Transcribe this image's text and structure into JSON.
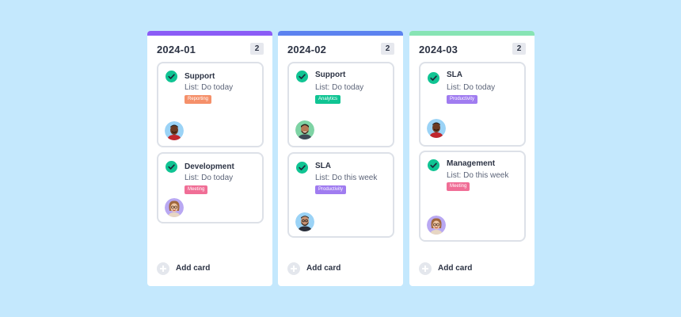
{
  "columns": [
    {
      "title": "2024-01",
      "count": "2",
      "accent": "#8b5cf6",
      "add_label": "Add card",
      "cards": [
        {
          "title": "Support",
          "list": "List: Do today",
          "tag": "Reporting",
          "tag_color": "#f5906a",
          "avatar": "avatar-man-dark-red-shirt"
        },
        {
          "title": "Development",
          "list": "List: Do today",
          "tag": "Meeting",
          "tag_color": "#f06e96",
          "avatar": "avatar-woman-glasses"
        }
      ]
    },
    {
      "title": "2024-02",
      "count": "2",
      "accent": "#5c82f0",
      "add_label": "Add card",
      "cards": [
        {
          "title": "Support",
          "list": "List: Do today",
          "tag": "Analytics",
          "tag_color": "#10c493",
          "avatar": "avatar-man-beard-green"
        },
        {
          "title": "SLA",
          "list": "List: Do this week",
          "tag": "Productivity",
          "tag_color": "#a07cf0",
          "avatar": "avatar-man-beard-blue"
        }
      ]
    },
    {
      "title": "2024-03",
      "count": "2",
      "accent": "#87e4b4",
      "add_label": "Add card",
      "cards": [
        {
          "title": "SLA",
          "list": "List: Do today",
          "tag": "Productivity",
          "tag_color": "#a07cf0",
          "avatar": "avatar-man-dark-red-shirt"
        },
        {
          "title": "Management",
          "list": "List: Do this week",
          "tag": "Meeting",
          "tag_color": "#f06e96",
          "avatar": "avatar-woman-glasses"
        }
      ]
    }
  ]
}
